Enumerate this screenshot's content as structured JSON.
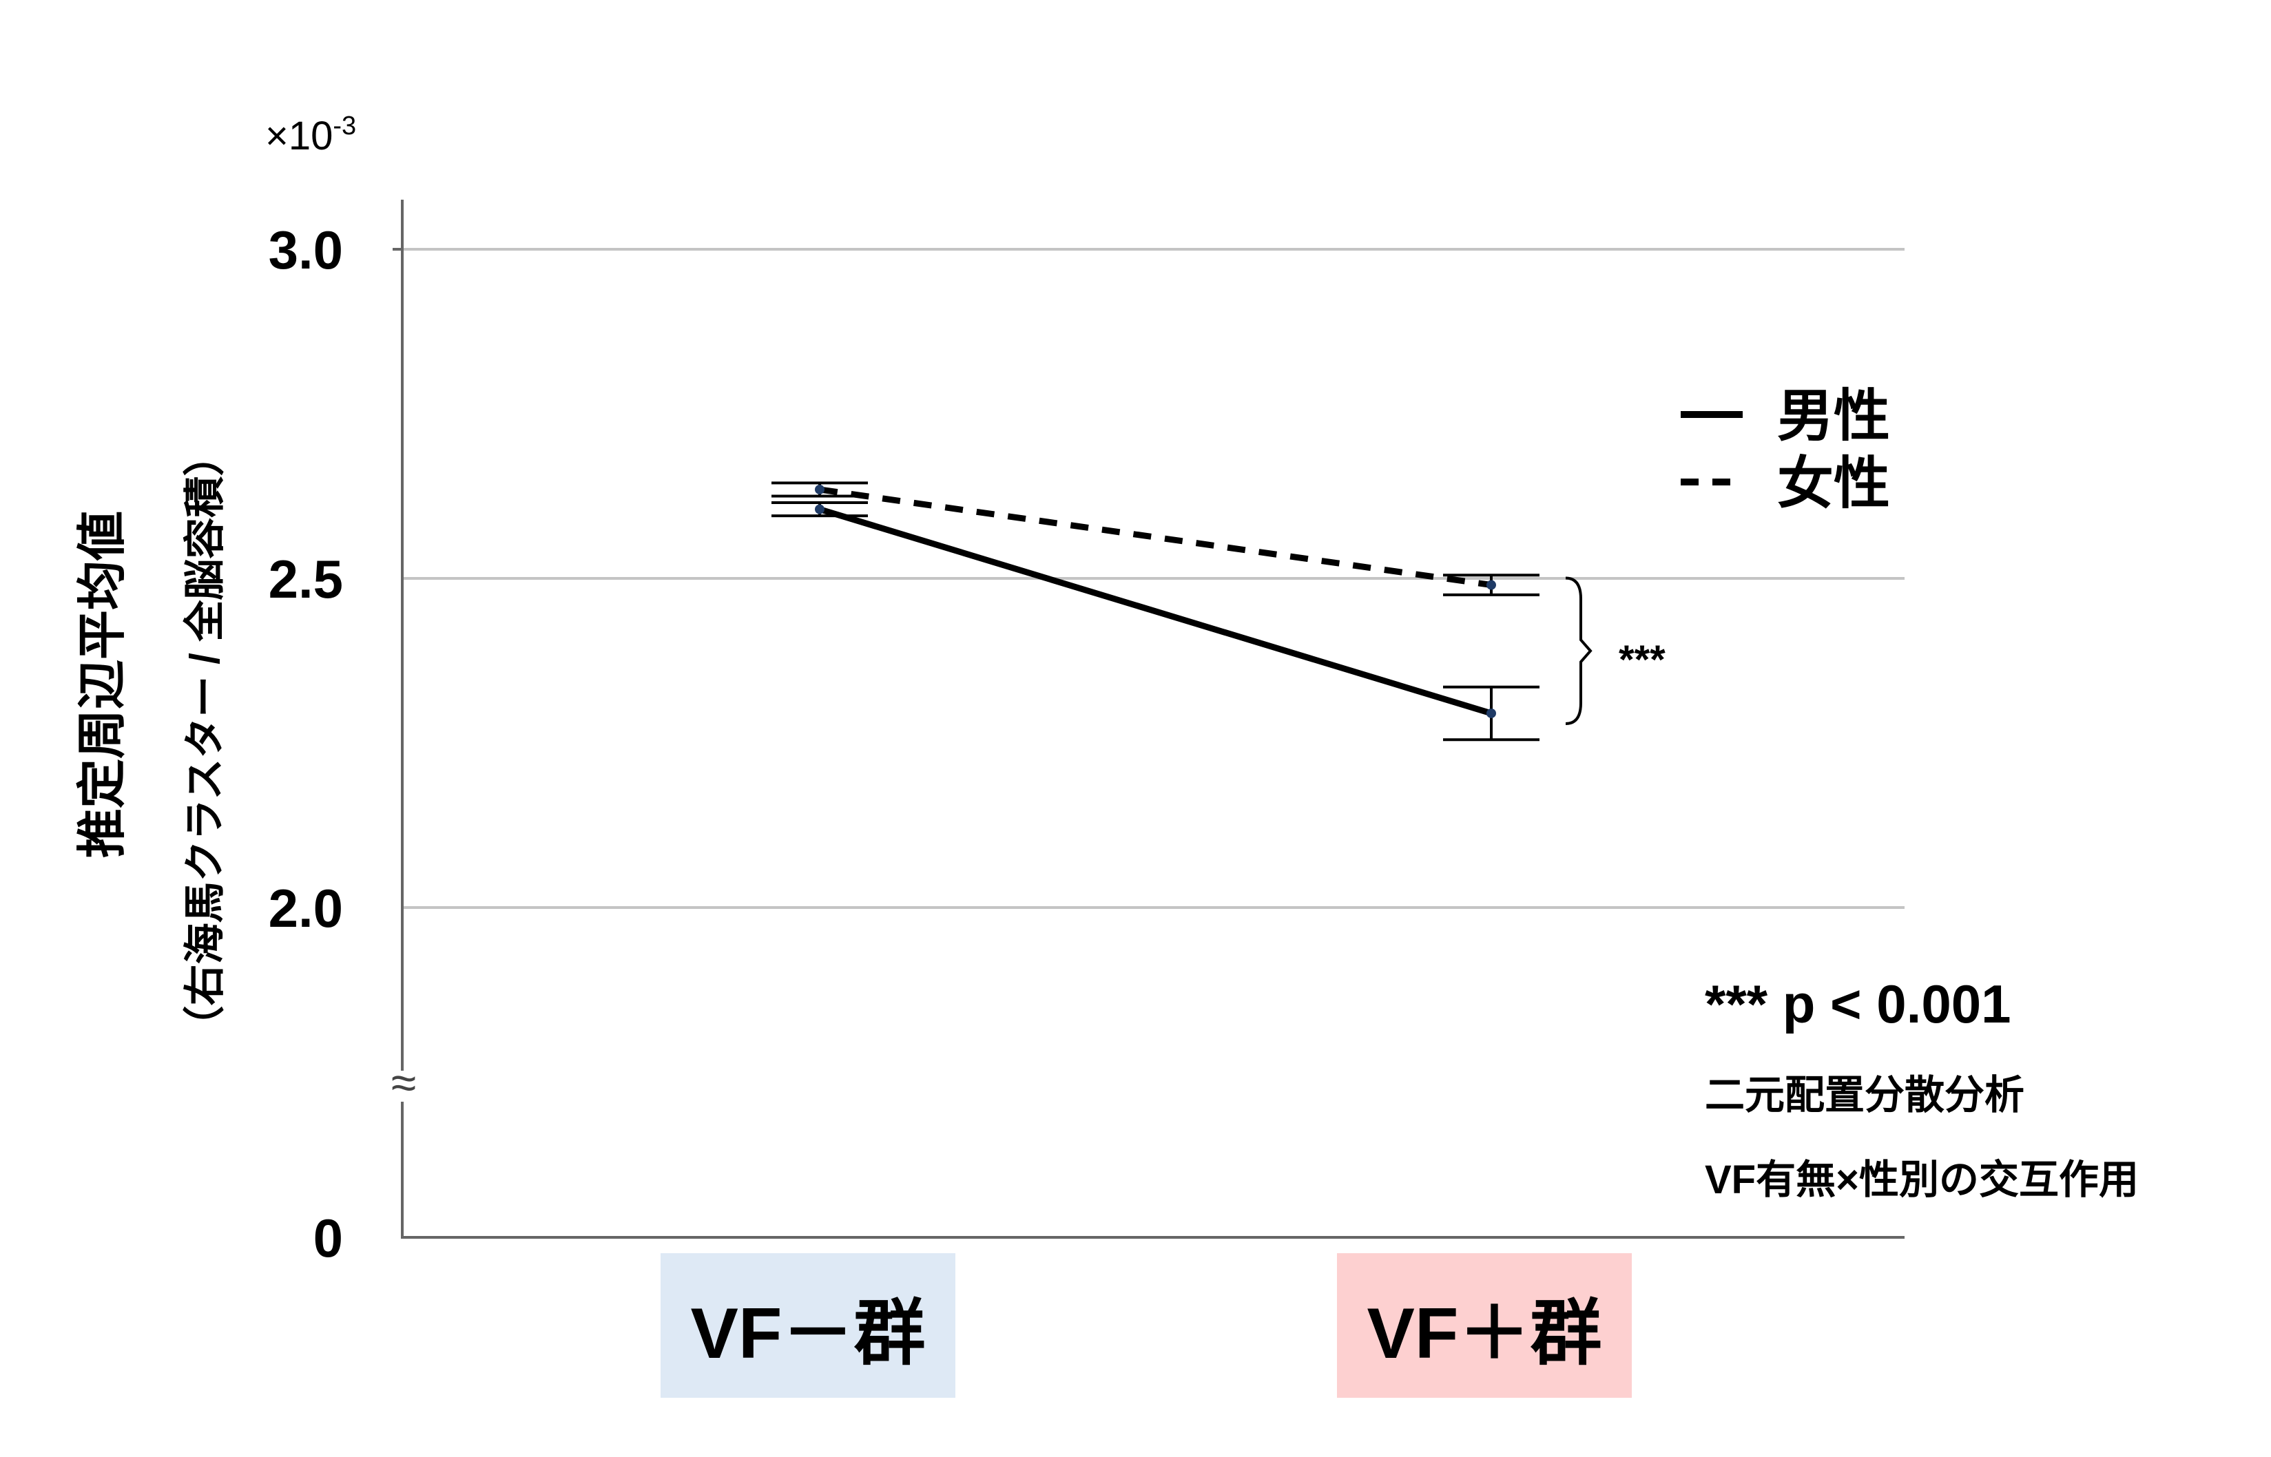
{
  "chart_data": {
    "type": "line",
    "categories": [
      "VF－群",
      "VF＋群"
    ],
    "category_colors": [
      "#dee9f5",
      "#fdd0d0"
    ],
    "series": [
      {
        "name": "男性",
        "style": "solid",
        "values": [
          2.605,
          2.295
        ],
        "errors": [
          [
            2.595,
            2.615
          ],
          [
            2.255,
            2.335
          ]
        ]
      },
      {
        "name": "女性",
        "style": "dashed",
        "values": [
          2.635,
          2.49
        ],
        "errors": [
          [
            2.625,
            2.645
          ],
          [
            2.475,
            2.505
          ]
        ]
      }
    ],
    "ylabel_main": "推定周辺平均値",
    "ylabel_sub": "（右海馬クラスター / 全脳容積）",
    "y_multiplier": "×10",
    "y_multiplier_exp": "-3",
    "yticks": [
      {
        "value": 3.0,
        "label": "3.0"
      },
      {
        "value": 2.5,
        "label": "2.5"
      },
      {
        "value": 2.0,
        "label": "2.0"
      },
      {
        "value": 0,
        "label": "0"
      }
    ],
    "axis_break": true,
    "axis_break_symbol": "≈",
    "grid": true,
    "legend_position": "top-right",
    "significance_label": "***",
    "annotations": [
      "*** p < 0.001",
      "二元配置分散分析",
      "VF有無×性別の交互作用"
    ]
  }
}
